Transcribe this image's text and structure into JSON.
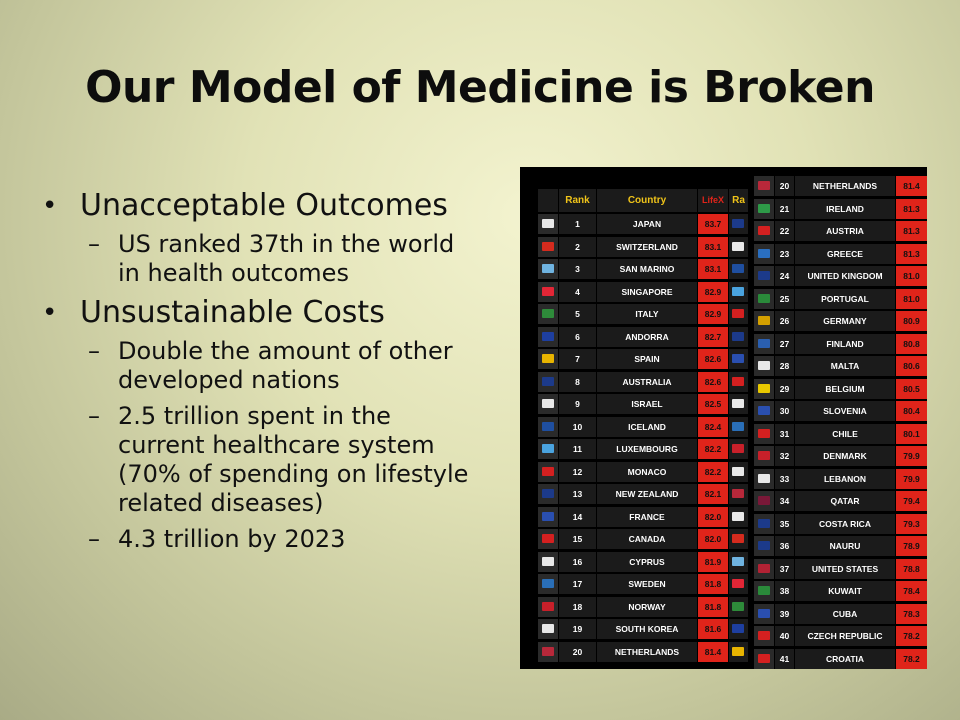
{
  "slide": {
    "title": "Our Model of Medicine is Broken",
    "bullets": [
      {
        "text": "Unacceptable Outcomes",
        "subs": [
          "US ranked 37th in the world in health outcomes"
        ]
      },
      {
        "text": "Unsustainable Costs",
        "subs": [
          "Double the amount of other developed nations",
          "2.5 trillion spent in the current healthcare system (70% of spending on lifestyle  related diseases)",
          "4.3 trillion by 2023"
        ]
      }
    ]
  },
  "table": {
    "headers": {
      "rank": "Rank",
      "country": "Country",
      "value": "LifeX",
      "extra": "Ra"
    },
    "colors": {
      "value_bg": "#e0241a",
      "cell_bg": "#1b1b1b",
      "header_text": "#f0c419",
      "value_header_text": "#e0241a"
    },
    "left_rows": [
      {
        "rank": "1",
        "country": "JAPAN",
        "value": "83.7",
        "flag": "#e8e8e8"
      },
      {
        "rank": "2",
        "country": "SWITZERLAND",
        "value": "83.1",
        "flag": "#d52b1e"
      },
      {
        "rank": "3",
        "country": "SAN MARINO",
        "value": "83.1",
        "flag": "#6fb3e0"
      },
      {
        "rank": "4",
        "country": "SINGAPORE",
        "value": "82.9",
        "flag": "#e32636"
      },
      {
        "rank": "5",
        "country": "ITALY",
        "value": "82.9",
        "flag": "#2e8b3a"
      },
      {
        "rank": "6",
        "country": "ANDORRA",
        "value": "82.7",
        "flag": "#1e3fa0"
      },
      {
        "rank": "7",
        "country": "SPAIN",
        "value": "82.6",
        "flag": "#e8b400"
      },
      {
        "rank": "8",
        "country": "AUSTRALIA",
        "value": "82.6",
        "flag": "#1c3a8a"
      },
      {
        "rank": "9",
        "country": "ISRAEL",
        "value": "82.5",
        "flag": "#e8e8e8"
      },
      {
        "rank": "10",
        "country": "ICELAND",
        "value": "82.4",
        "flag": "#1f4fa0"
      },
      {
        "rank": "11",
        "country": "LUXEMBOURG",
        "value": "82.2",
        "flag": "#4aa3df"
      },
      {
        "rank": "12",
        "country": "MONACO",
        "value": "82.2",
        "flag": "#d42020"
      },
      {
        "rank": "13",
        "country": "NEW ZEALAND",
        "value": "82.1",
        "flag": "#1c3a8a"
      },
      {
        "rank": "14",
        "country": "FRANCE",
        "value": "82.0",
        "flag": "#2a4fb0"
      },
      {
        "rank": "15",
        "country": "CANADA",
        "value": "82.0",
        "flag": "#d42020"
      },
      {
        "rank": "16",
        "country": "CYPRUS",
        "value": "81.9",
        "flag": "#e8e8e8"
      },
      {
        "rank": "17",
        "country": "SWEDEN",
        "value": "81.8",
        "flag": "#2a6fb8"
      },
      {
        "rank": "18",
        "country": "NORWAY",
        "value": "81.8",
        "flag": "#c8202a"
      },
      {
        "rank": "19",
        "country": "SOUTH KOREA",
        "value": "81.6",
        "flag": "#e8e8e8"
      },
      {
        "rank": "20",
        "country": "NETHERLANDS",
        "value": "81.4",
        "flag": "#b8283a"
      }
    ],
    "right_rows": [
      {
        "rank": "20",
        "country": "NETHERLANDS",
        "value": "81.4",
        "flag": "#b8283a"
      },
      {
        "rank": "21",
        "country": "IRELAND",
        "value": "81.3",
        "flag": "#2e9a48"
      },
      {
        "rank": "22",
        "country": "AUSTRIA",
        "value": "81.3",
        "flag": "#d42020"
      },
      {
        "rank": "23",
        "country": "GREECE",
        "value": "81.3",
        "flag": "#2a6fc0"
      },
      {
        "rank": "24",
        "country": "UNITED KINGDOM",
        "value": "81.0",
        "flag": "#1c3a8a"
      },
      {
        "rank": "25",
        "country": "PORTUGAL",
        "value": "81.0",
        "flag": "#2a8a3a"
      },
      {
        "rank": "26",
        "country": "GERMANY",
        "value": "80.9",
        "flag": "#d4a000"
      },
      {
        "rank": "27",
        "country": "FINLAND",
        "value": "80.8",
        "flag": "#2a5fb0"
      },
      {
        "rank": "28",
        "country": "MALTA",
        "value": "80.6",
        "flag": "#e8e8e8"
      },
      {
        "rank": "29",
        "country": "BELGIUM",
        "value": "80.5",
        "flag": "#e8c800"
      },
      {
        "rank": "30",
        "country": "SLOVENIA",
        "value": "80.4",
        "flag": "#2a4fb0"
      },
      {
        "rank": "31",
        "country": "CHILE",
        "value": "80.1",
        "flag": "#d42020"
      },
      {
        "rank": "32",
        "country": "DENMARK",
        "value": "79.9",
        "flag": "#c8202a"
      },
      {
        "rank": "33",
        "country": "LEBANON",
        "value": "79.9",
        "flag": "#e8e8e8"
      },
      {
        "rank": "34",
        "country": "QATAR",
        "value": "79.4",
        "flag": "#7a1838"
      },
      {
        "rank": "35",
        "country": "COSTA RICA",
        "value": "79.3",
        "flag": "#1c3a8a"
      },
      {
        "rank": "36",
        "country": "NAURU",
        "value": "78.9",
        "flag": "#1c3a8a"
      },
      {
        "rank": "37",
        "country": "UNITED STATES",
        "value": "78.8",
        "flag": "#b22234"
      },
      {
        "rank": "38",
        "country": "KUWAIT",
        "value": "78.4",
        "flag": "#2a8a3a"
      },
      {
        "rank": "39",
        "country": "CUBA",
        "value": "78.3",
        "flag": "#2a4fb0"
      },
      {
        "rank": "40",
        "country": "CZECH REPUBLIC",
        "value": "78.2",
        "flag": "#d42020"
      },
      {
        "rank": "41",
        "country": "CROATIA",
        "value": "78.2",
        "flag": "#d42020"
      }
    ]
  }
}
